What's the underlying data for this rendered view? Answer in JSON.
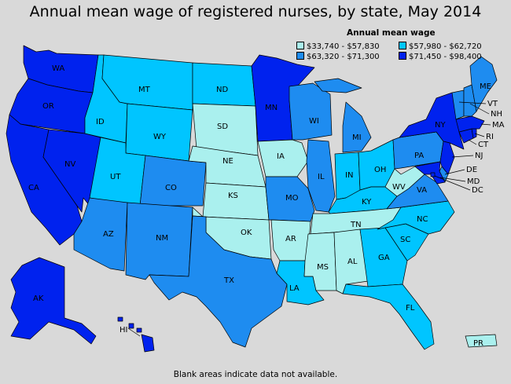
{
  "title": "Annual mean wage of registered nurses, by state, May 2014",
  "footnote": "Blank areas indicate data not available.",
  "legend": {
    "title": "Annual mean wage",
    "items": [
      {
        "label": "$33,740 - $57,830",
        "color": "#aaf0ee"
      },
      {
        "label": "$57,980 - $62,720",
        "color": "#00c5ff"
      },
      {
        "label": "$63,320 - $71,300",
        "color": "#1e8cf0"
      },
      {
        "label": "$71,450 - $98,400",
        "color": "#0022ee"
      }
    ]
  },
  "colors": {
    "background": "#d9d9d9",
    "border": "#000000",
    "class_1": "#aaf0ee",
    "class_2": "#00c5ff",
    "class_3": "#1e8cf0",
    "class_4": "#0022ee"
  },
  "states": [
    {
      "abbr": "WA",
      "class": 4
    },
    {
      "abbr": "OR",
      "class": 4
    },
    {
      "abbr": "CA",
      "class": 4
    },
    {
      "abbr": "NV",
      "class": 4
    },
    {
      "abbr": "ID",
      "class": 2
    },
    {
      "abbr": "MT",
      "class": 2
    },
    {
      "abbr": "WY",
      "class": 2
    },
    {
      "abbr": "UT",
      "class": 2
    },
    {
      "abbr": "AZ",
      "class": 3
    },
    {
      "abbr": "CO",
      "class": 3
    },
    {
      "abbr": "NM",
      "class": 3
    },
    {
      "abbr": "ND",
      "class": 2
    },
    {
      "abbr": "SD",
      "class": 1
    },
    {
      "abbr": "NE",
      "class": 1
    },
    {
      "abbr": "KS",
      "class": 1
    },
    {
      "abbr": "OK",
      "class": 1
    },
    {
      "abbr": "TX",
      "class": 3
    },
    {
      "abbr": "MN",
      "class": 4
    },
    {
      "abbr": "IA",
      "class": 1
    },
    {
      "abbr": "MO",
      "class": 3
    },
    {
      "abbr": "AR",
      "class": 1
    },
    {
      "abbr": "LA",
      "class": 2
    },
    {
      "abbr": "WI",
      "class": 3
    },
    {
      "abbr": "IL",
      "class": 3
    },
    {
      "abbr": "MI",
      "class": 3
    },
    {
      "abbr": "IN",
      "class": 2
    },
    {
      "abbr": "OH",
      "class": 2
    },
    {
      "abbr": "KY",
      "class": 2
    },
    {
      "abbr": "TN",
      "class": 1
    },
    {
      "abbr": "MS",
      "class": 1
    },
    {
      "abbr": "AL",
      "class": 1
    },
    {
      "abbr": "GA",
      "class": 2
    },
    {
      "abbr": "FL",
      "class": 2
    },
    {
      "abbr": "SC",
      "class": 2
    },
    {
      "abbr": "NC",
      "class": 2
    },
    {
      "abbr": "VA",
      "class": 3
    },
    {
      "abbr": "WV",
      "class": 1
    },
    {
      "abbr": "PA",
      "class": 3
    },
    {
      "abbr": "NY",
      "class": 4
    },
    {
      "abbr": "NJ",
      "class": 4
    },
    {
      "abbr": "DE",
      "class": 3
    },
    {
      "abbr": "MD",
      "class": 4
    },
    {
      "abbr": "DC",
      "class": 4
    },
    {
      "abbr": "CT",
      "class": 4
    },
    {
      "abbr": "RI",
      "class": 4
    },
    {
      "abbr": "MA",
      "class": 4
    },
    {
      "abbr": "VT",
      "class": 3
    },
    {
      "abbr": "NH",
      "class": 3
    },
    {
      "abbr": "ME",
      "class": 3
    },
    {
      "abbr": "AK",
      "class": 4
    },
    {
      "abbr": "HI",
      "class": 4
    },
    {
      "abbr": "PR",
      "class": 1
    }
  ]
}
